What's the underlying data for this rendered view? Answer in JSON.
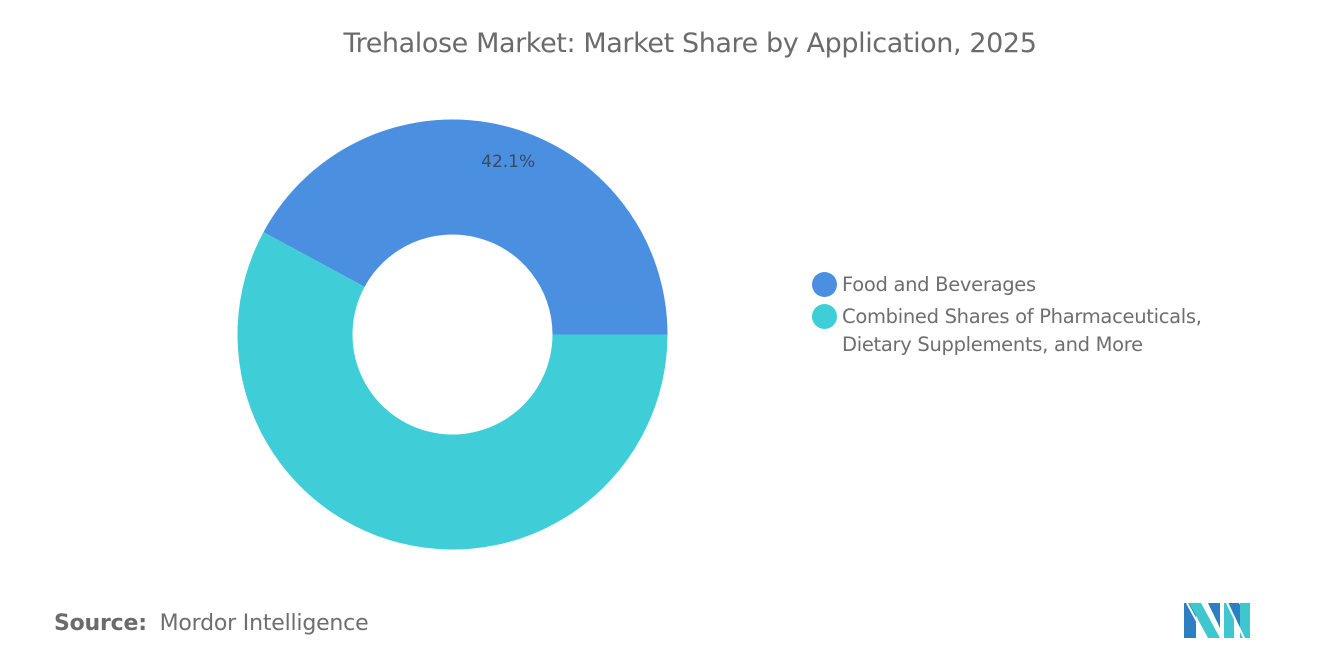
{
  "title": "Trehalose Market: Market Share by Application, 2025",
  "legend": {
    "items": [
      {
        "label_lines": [
          "Food and Beverages"
        ],
        "color": "#4a8fe0"
      },
      {
        "label_lines": [
          "Combined Shares of Pharmaceuticals,",
          "Dietary Supplements, and More"
        ],
        "color": "#3fcdd7"
      }
    ]
  },
  "source": {
    "label": "Source:",
    "value": "Mordor Intelligence"
  },
  "logo": {
    "name": "mordor-intelligence-logo",
    "colors": [
      "#2b7fc2",
      "#3fc6cf"
    ]
  },
  "chart_data": {
    "type": "pie",
    "variant": "donut",
    "title": "Trehalose Market: Market Share by Application, 2025",
    "categories": [
      "Food and Beverages",
      "Combined Shares of Pharmaceuticals, Dietary Supplements, and More"
    ],
    "values": [
      42.1,
      57.9
    ],
    "unit": "%",
    "data_labels": [
      "42.1%",
      null
    ],
    "colors": [
      "#4a8fe0",
      "#3fcdd7"
    ],
    "start_angle_deg": 0,
    "direction": "counterclockwise",
    "inner_radius_ratio": 0.465,
    "legend_position": "right",
    "source": "Mordor Intelligence"
  }
}
